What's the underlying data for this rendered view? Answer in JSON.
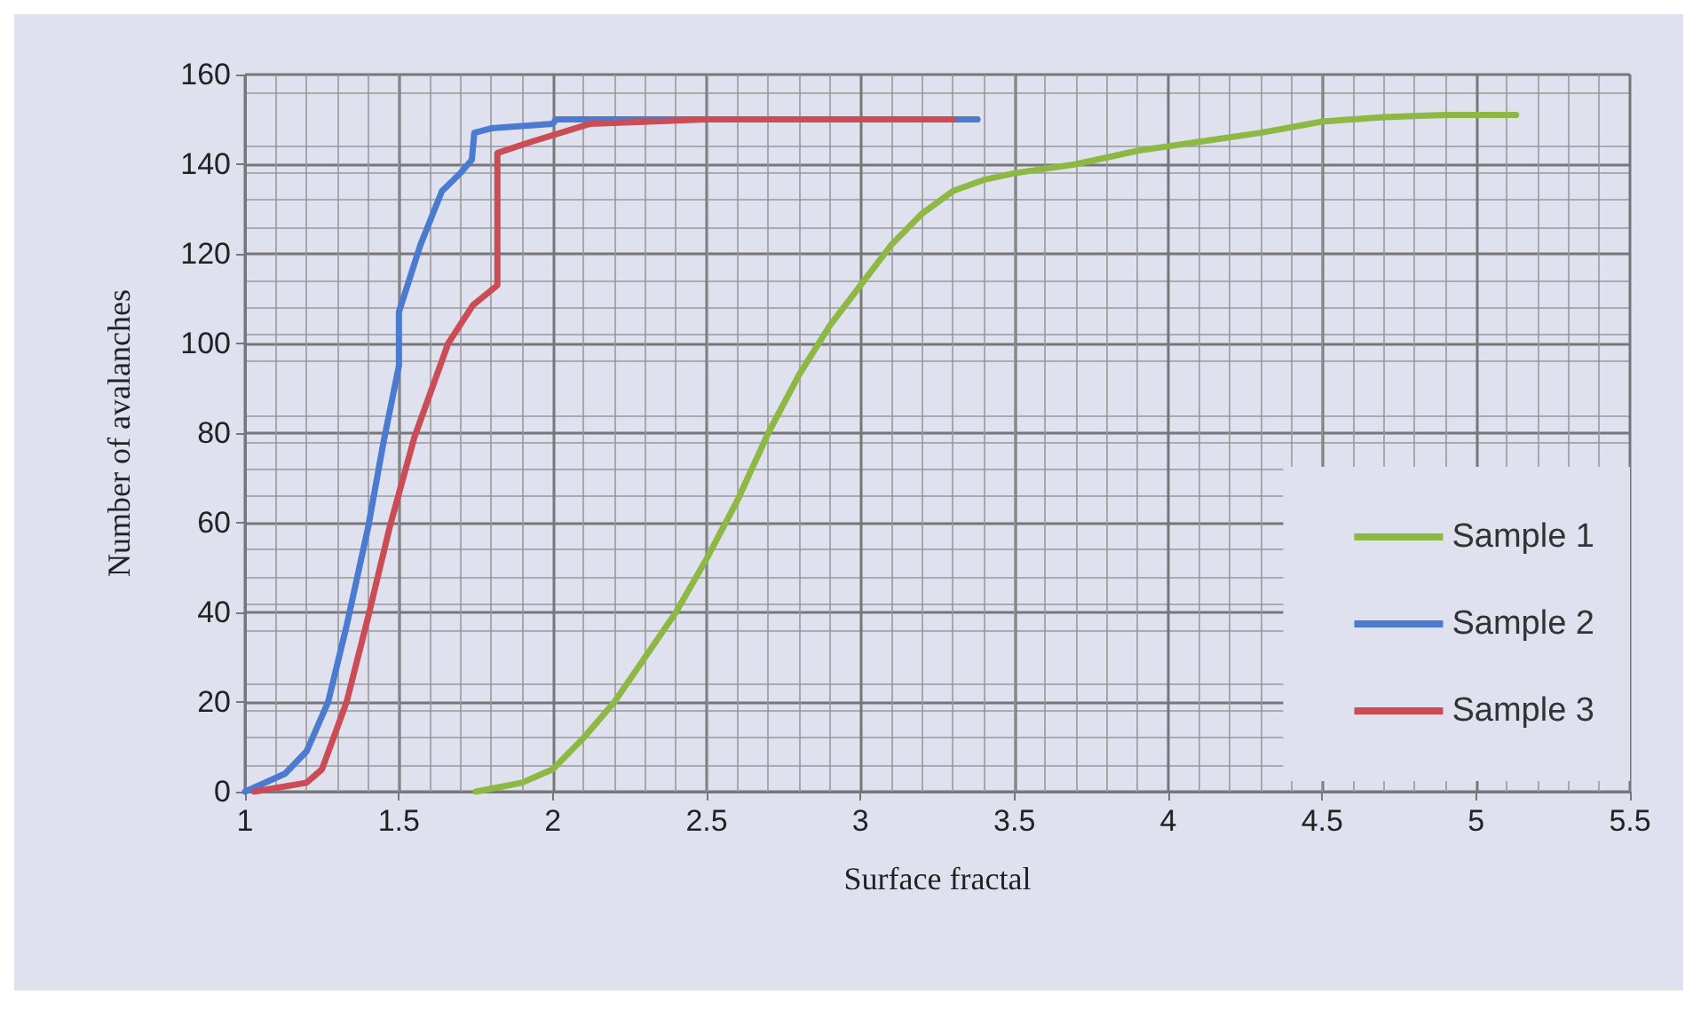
{
  "chart_data": {
    "type": "line",
    "xlabel": "Surface fractal",
    "ylabel": "Number of avalanches",
    "xlim": [
      1,
      5.5
    ],
    "xticks": [
      1,
      1.5,
      2,
      2.5,
      3,
      3.5,
      4,
      4.5,
      5,
      5.5
    ],
    "ylim": [
      0,
      160
    ],
    "yticks": [
      0,
      20,
      40,
      60,
      80,
      100,
      120,
      140,
      160
    ],
    "grid": true,
    "legend": "right",
    "marker": "none",
    "line_style": "solid",
    "series": [
      {
        "name": "Sample 1",
        "color": "#8db843",
        "x": [
          1.75,
          1.9,
          2.0,
          2.1,
          2.2,
          2.3,
          2.4,
          2.5,
          2.6,
          2.7,
          2.8,
          2.9,
          3.0,
          3.1,
          3.2,
          3.3,
          3.4,
          3.5,
          3.7,
          3.9,
          4.1,
          4.3,
          4.5,
          4.7,
          4.9,
          5.13
        ],
        "values": [
          0,
          2,
          5,
          12,
          20,
          30,
          40,
          52,
          65,
          80,
          93,
          104,
          113,
          122,
          129,
          134,
          136.5,
          138,
          140,
          143,
          145,
          147,
          149.5,
          150.5,
          151,
          151
        ]
      },
      {
        "name": "Sample 2",
        "color": "#4a7bd0",
        "x": [
          1.0,
          1.13,
          1.2,
          1.27,
          1.33,
          1.4,
          1.45,
          1.5,
          1.5,
          1.57,
          1.64,
          1.7,
          1.737,
          1.745,
          1.8,
          2.0,
          2.01,
          3.38
        ],
        "values": [
          0,
          4,
          9,
          20,
          37,
          59,
          78,
          95,
          107,
          122,
          134,
          138,
          141,
          147,
          148,
          149,
          150,
          150
        ]
      },
      {
        "name": "Sample 3",
        "color": "#cc4c55",
        "x": [
          1.03,
          1.2,
          1.25,
          1.33,
          1.4,
          1.47,
          1.55,
          1.66,
          1.74,
          1.82,
          1.82,
          1.93,
          2.12,
          2.5,
          3.3
        ],
        "values": [
          0,
          2,
          5,
          20,
          39,
          59,
          79,
          100,
          108.5,
          113,
          142.5,
          145,
          149,
          150,
          150
        ]
      }
    ]
  }
}
